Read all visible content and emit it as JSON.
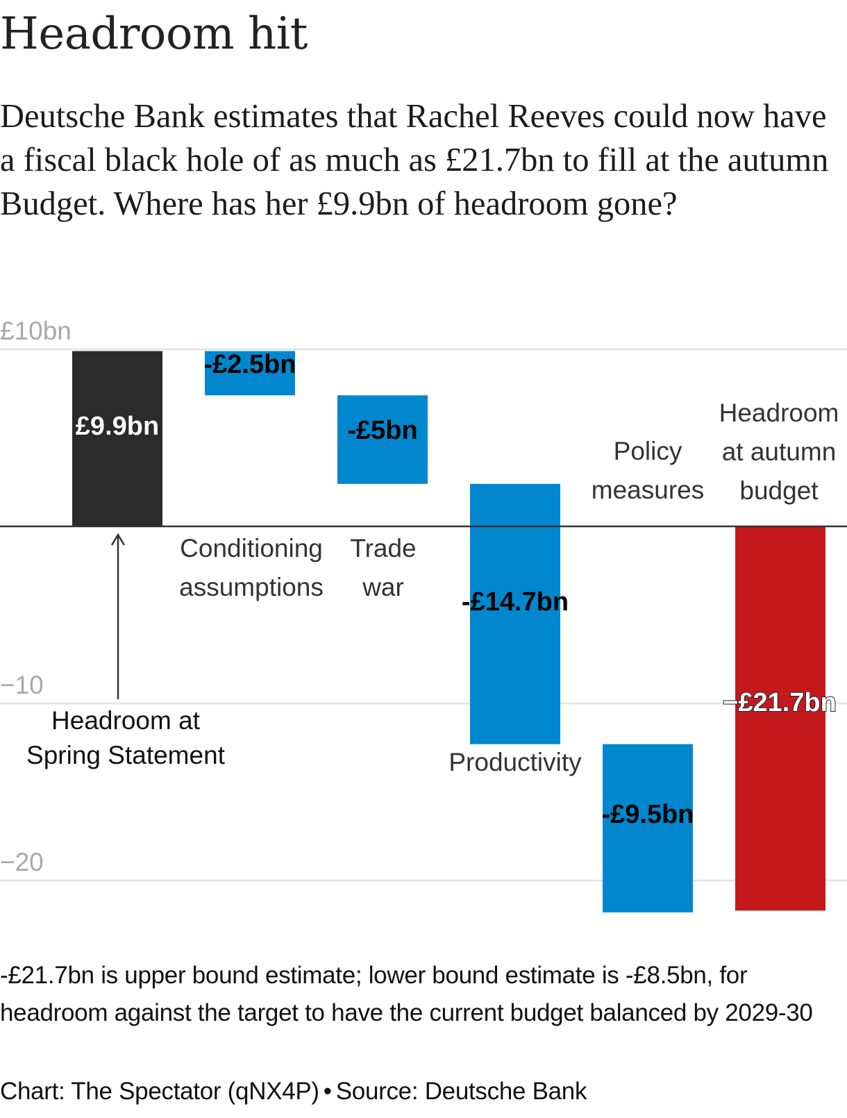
{
  "header": {
    "title": "Headroom hit",
    "subtitle": "Deutsche Bank estimates that Rachel Reeves could now have a fiscal black hole of as much as £21.7bn to fill at the autumn Budget. Where has her £9.9bn of headroom gone?"
  },
  "chart_data": {
    "type": "waterfall",
    "title": "Headroom hit",
    "xlabel": "",
    "ylabel": "",
    "ylim": [
      -22,
      10
    ],
    "grid": true,
    "y_ticks": [
      {
        "value": 10,
        "label": "£10bn"
      },
      {
        "value": -10,
        "label": "−10"
      },
      {
        "value": -20,
        "label": "−20"
      }
    ],
    "categories": [
      "Headroom at Spring Statement",
      "Conditioning assumptions",
      "Trade war",
      "Productivity",
      "Policy measures",
      "Headroom at autumn budget"
    ],
    "values": [
      9.9,
      -2.5,
      -5,
      -14.7,
      -9.5,
      -21.7
    ],
    "bars": [
      {
        "name": "Headroom at Spring Statement",
        "label_lines": [
          "Headroom at",
          "Spring Statement"
        ],
        "kind": "total",
        "start": 0,
        "end": 9.9,
        "value_label": "£9.9bn",
        "color": "#2b2b2b"
      },
      {
        "name": "Conditioning assumptions",
        "label_lines": [
          "Conditioning",
          "assumptions"
        ],
        "kind": "change",
        "start": 9.9,
        "end": 7.4,
        "value_label": "-£2.5bn",
        "color": "#0087ce"
      },
      {
        "name": "Trade war",
        "label_lines": [
          "Trade",
          "war"
        ],
        "kind": "change",
        "start": 7.4,
        "end": 2.4,
        "value_label": "-£5bn",
        "color": "#0087ce"
      },
      {
        "name": "Productivity",
        "label_lines": [
          "Productivity"
        ],
        "kind": "change",
        "start": 2.4,
        "end": -12.3,
        "value_label": "-£14.7bn",
        "color": "#0087ce"
      },
      {
        "name": "Policy measures",
        "label_lines": [
          "Policy",
          "measures"
        ],
        "kind": "change",
        "start": -12.3,
        "end": -21.8,
        "value_label": "-£9.5bn",
        "color": "#0087ce"
      },
      {
        "name": "Headroom at autumn budget",
        "label_lines": [
          "Headroom",
          "at autumn",
          "budget"
        ],
        "kind": "total",
        "start": 0,
        "end": -21.7,
        "value_label": "−£21.7bn",
        "color": "#c4191c"
      }
    ],
    "annotation": {
      "text_lines": [
        "Headroom at",
        "Spring Statement"
      ],
      "arrow": "up"
    }
  },
  "footer": {
    "note": "-£21.7bn is upper bound estimate; lower bound estimate is -£8.5bn, for headroom against the target to have the current budget balanced by 2029-30",
    "credit": "Chart: The Spectator (qNX4P)",
    "separator": "•",
    "source": "Source: Deutsche Bank"
  }
}
